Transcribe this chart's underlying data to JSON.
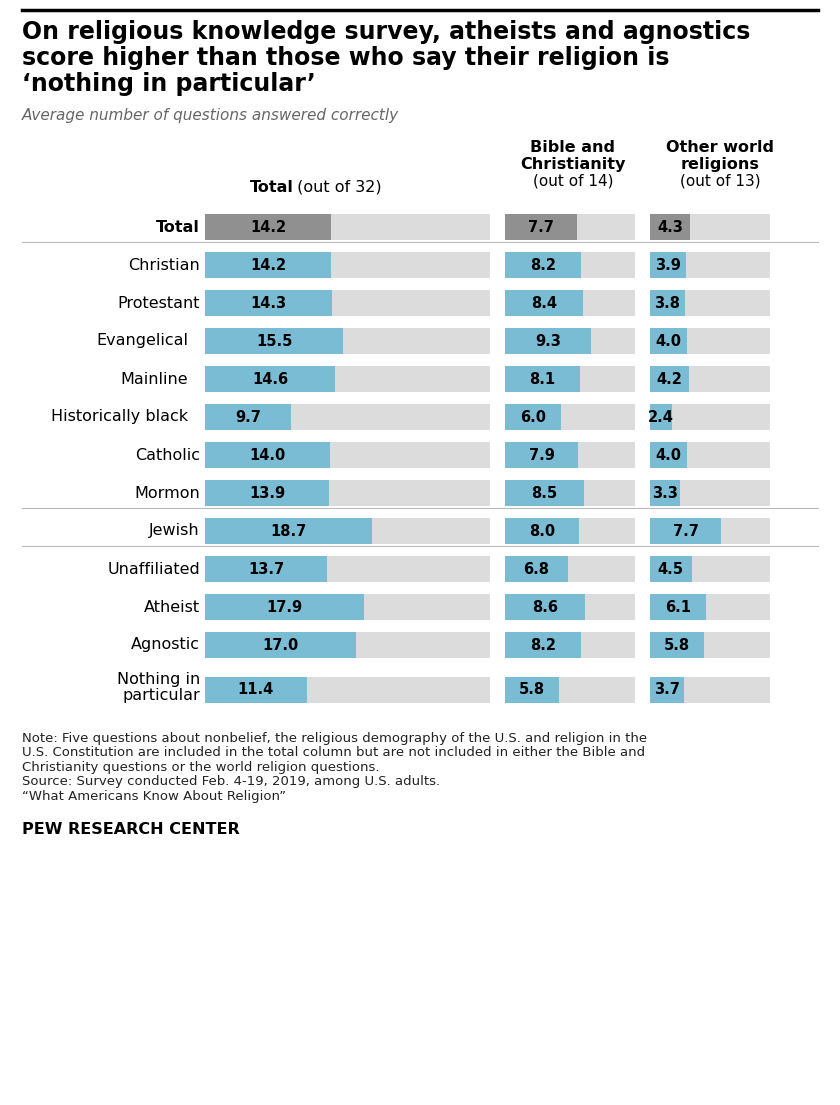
{
  "title_line1": "On religious knowledge survey, atheists and agnostics",
  "title_line2": "score higher than those who say their religion is",
  "title_line3": "‘nothing in particular’",
  "subtitle": "Average number of questions answered correctly",
  "rows": [
    {
      "label": "Total",
      "label2": "",
      "indent": 0,
      "separator_before": false,
      "total_row": true,
      "v1": 14.2,
      "max1": 32,
      "v2": 7.7,
      "max2": 14,
      "v3": 4.3,
      "max3": 13
    },
    {
      "label": "Christian",
      "label2": "",
      "indent": 0,
      "separator_before": true,
      "total_row": false,
      "v1": 14.2,
      "max1": 32,
      "v2": 8.2,
      "max2": 14,
      "v3": 3.9,
      "max3": 13
    },
    {
      "label": "Protestant",
      "label2": "",
      "indent": 0,
      "separator_before": false,
      "total_row": false,
      "v1": 14.3,
      "max1": 32,
      "v2": 8.4,
      "max2": 14,
      "v3": 3.8,
      "max3": 13
    },
    {
      "label": "Evangelical",
      "label2": "",
      "indent": 1,
      "separator_before": false,
      "total_row": false,
      "v1": 15.5,
      "max1": 32,
      "v2": 9.3,
      "max2": 14,
      "v3": 4.0,
      "max3": 13
    },
    {
      "label": "Mainline",
      "label2": "",
      "indent": 1,
      "separator_before": false,
      "total_row": false,
      "v1": 14.6,
      "max1": 32,
      "v2": 8.1,
      "max2": 14,
      "v3": 4.2,
      "max3": 13
    },
    {
      "label": "Historically black",
      "label2": "",
      "indent": 1,
      "separator_before": false,
      "total_row": false,
      "v1": 9.7,
      "max1": 32,
      "v2": 6.0,
      "max2": 14,
      "v3": 2.4,
      "max3": 13
    },
    {
      "label": "Catholic",
      "label2": "",
      "indent": 0,
      "separator_before": false,
      "total_row": false,
      "v1": 14.0,
      "max1": 32,
      "v2": 7.9,
      "max2": 14,
      "v3": 4.0,
      "max3": 13
    },
    {
      "label": "Mormon",
      "label2": "",
      "indent": 0,
      "separator_before": false,
      "total_row": false,
      "v1": 13.9,
      "max1": 32,
      "v2": 8.5,
      "max2": 14,
      "v3": 3.3,
      "max3": 13
    },
    {
      "label": "Jewish",
      "label2": "",
      "indent": 0,
      "separator_before": true,
      "total_row": false,
      "v1": 18.7,
      "max1": 32,
      "v2": 8.0,
      "max2": 14,
      "v3": 7.7,
      "max3": 13
    },
    {
      "label": "Unaffiliated",
      "label2": "",
      "indent": 0,
      "separator_before": true,
      "total_row": false,
      "v1": 13.7,
      "max1": 32,
      "v2": 6.8,
      "max2": 14,
      "v3": 4.5,
      "max3": 13
    },
    {
      "label": "Atheist",
      "label2": "",
      "indent": 0,
      "separator_before": false,
      "total_row": false,
      "v1": 17.9,
      "max1": 32,
      "v2": 8.6,
      "max2": 14,
      "v3": 6.1,
      "max3": 13
    },
    {
      "label": "Agnostic",
      "label2": "",
      "indent": 0,
      "separator_before": false,
      "total_row": false,
      "v1": 17.0,
      "max1": 32,
      "v2": 8.2,
      "max2": 14,
      "v3": 5.8,
      "max3": 13
    },
    {
      "label": "Nothing in",
      "label2": "particular",
      "indent": 0,
      "separator_before": false,
      "total_row": false,
      "v1": 11.4,
      "max1": 32,
      "v2": 5.8,
      "max2": 14,
      "v3": 3.7,
      "max3": 13
    }
  ],
  "colors": {
    "blue_bar": "#7bbcd5",
    "gray_bar": "#909090",
    "bg_bar": "#dcdcdc",
    "separator": "#bbbbbb",
    "text_dark": "#1a1a1a"
  },
  "note1": "Note: Five questions about nonbelief, the religious demography of the U.S. and religion in the",
  "note2": "U.S. Constitution are included in the total column but are not included in either the Bible and",
  "note3": "Christianity questions or the world religion questions.",
  "note4": "Source: Survey conducted Feb. 4-19, 2019, among U.S. adults.",
  "note5": "“What Americans Know About Religion”",
  "footer": "PEW RESEARCH CENTER"
}
